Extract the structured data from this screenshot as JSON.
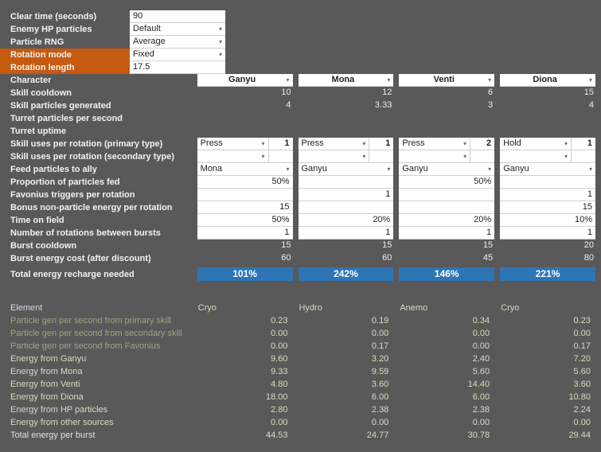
{
  "colors": {
    "background": "#595959",
    "highlight_orange": "#C55A11",
    "result_blue": "#2E75B6",
    "cell_white": "#FFFFFF",
    "dim_label_green": "#9EA383",
    "result_text_khaki": "#D9DAC2"
  },
  "settings": {
    "rows": [
      {
        "label": "Clear time (seconds)",
        "value": "90"
      },
      {
        "label": "Enemy HP particles",
        "value": "Default"
      },
      {
        "label": "Particle RNG",
        "value": "Average"
      },
      {
        "label": "Rotation mode",
        "value": "Fixed"
      },
      {
        "label": "Rotation length",
        "value": "17.5"
      }
    ]
  },
  "characters": [
    "Ganyu",
    "Mona",
    "Venti",
    "Diona"
  ],
  "main": {
    "character": {
      "label": "Character"
    },
    "skill_cooldown": {
      "label": "Skill cooldown",
      "values": [
        "10",
        "12",
        "6",
        "15"
      ]
    },
    "skill_particles": {
      "label": "Skill particles generated",
      "values": [
        "4",
        "3.33",
        "3",
        "4"
      ]
    },
    "turret_pps": {
      "label": "Turret particles per second",
      "values": [
        "",
        "",
        "",
        ""
      ]
    },
    "turret_uptime": {
      "label": "Turret uptime",
      "values": [
        "",
        "",
        "",
        ""
      ]
    },
    "primary": {
      "label": "Skill uses per rotation (primary type)",
      "modes": [
        "Press",
        "Press",
        "Press",
        "Hold"
      ],
      "counts": [
        "1",
        "1",
        "2",
        "1"
      ]
    },
    "secondary": {
      "label": "Skill uses per rotation (secondary type)",
      "modes": [
        "",
        "",
        "",
        ""
      ],
      "counts": [
        "",
        "",
        "",
        ""
      ]
    },
    "feed": {
      "label": "Feed particles to ally",
      "values": [
        "Mona",
        "Ganyu",
        "Ganyu",
        "Ganyu"
      ]
    },
    "proportion": {
      "label": "Proportion of particles fed",
      "values": [
        "50%",
        "",
        "50%",
        ""
      ]
    },
    "favonius": {
      "label": "Favonius triggers per rotation",
      "values": [
        "",
        "1",
        "",
        "1"
      ]
    },
    "bonus_energy": {
      "label": "Bonus non-particle energy per rotation",
      "values": [
        "15",
        "",
        "",
        "15"
      ]
    },
    "time_on_field": {
      "label": "Time on field",
      "values": [
        "50%",
        "20%",
        "20%",
        "10%"
      ]
    },
    "rotations_between": {
      "label": "Number of rotations between bursts",
      "values": [
        "1",
        "1",
        "1",
        "1"
      ]
    },
    "burst_cooldown": {
      "label": "Burst cooldown",
      "values": [
        "15",
        "15",
        "15",
        "20"
      ]
    },
    "burst_cost": {
      "label": "Burst energy cost (after discount)",
      "values": [
        "60",
        "60",
        "45",
        "80"
      ]
    },
    "er_needed": {
      "label": "Total energy recharge needed",
      "values": [
        "101%",
        "242%",
        "146%",
        "221%"
      ]
    }
  },
  "results": {
    "element": {
      "label": "Element",
      "values": [
        "Cryo",
        "Hydro",
        "Anemo",
        "Cryo"
      ]
    },
    "pgen_primary": {
      "label": "Particle gen per second from primary skill",
      "values": [
        "0.23",
        "0.19",
        "0.34",
        "0.23"
      ]
    },
    "pgen_secondary": {
      "label": "Particle gen per second from secondary skill",
      "values": [
        "0.00",
        "0.00",
        "0.00",
        "0.00"
      ]
    },
    "pgen_favonius": {
      "label": "Particle gen per second from Favonius",
      "values": [
        "0.00",
        "0.17",
        "0.00",
        "0.17"
      ]
    },
    "energy_ganyu": {
      "label": "Energy from Ganyu",
      "values": [
        "9.60",
        "3.20",
        "2.40",
        "7.20"
      ]
    },
    "energy_mona": {
      "label": "Energy from Mona",
      "values": [
        "9.33",
        "9.59",
        "5.60",
        "5.60"
      ]
    },
    "energy_venti": {
      "label": "Energy from Venti",
      "values": [
        "4.80",
        "3.60",
        "14.40",
        "3.60"
      ]
    },
    "energy_diona": {
      "label": "Energy from Diona",
      "values": [
        "18.00",
        "6.00",
        "6.00",
        "10.80"
      ]
    },
    "energy_hp": {
      "label": "Energy  from HP particles",
      "values": [
        "2.80",
        "2.38",
        "2.38",
        "2.24"
      ]
    },
    "energy_other": {
      "label": "Energy from other sources",
      "values": [
        "0.00",
        "0.00",
        "0.00",
        "0.00"
      ]
    },
    "total": {
      "label": "Total energy per burst",
      "values": [
        "44.53",
        "24.77",
        "30.78",
        "29.44"
      ]
    }
  }
}
